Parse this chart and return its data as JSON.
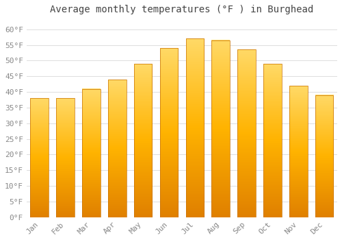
{
  "title": "Average monthly temperatures (°F ) in Burghead",
  "months": [
    "Jan",
    "Feb",
    "Mar",
    "Apr",
    "May",
    "Jun",
    "Jul",
    "Aug",
    "Sep",
    "Oct",
    "Nov",
    "Dec"
  ],
  "values": [
    38,
    38,
    41,
    44,
    49,
    54,
    57,
    56.5,
    53.5,
    49,
    42,
    39
  ],
  "bar_color": "#FFA500",
  "background_color": "#FFFFFF",
  "grid_color": "#DDDDDD",
  "text_color": "#888888",
  "title_color": "#444444",
  "ylim": [
    0,
    63
  ],
  "yticks": [
    0,
    5,
    10,
    15,
    20,
    25,
    30,
    35,
    40,
    45,
    50,
    55,
    60
  ],
  "ytick_labels": [
    "0°F",
    "5°F",
    "10°F",
    "15°F",
    "20°F",
    "25°F",
    "30°F",
    "35°F",
    "40°F",
    "45°F",
    "50°F",
    "55°F",
    "60°F"
  ],
  "title_fontsize": 10,
  "tick_fontsize": 8,
  "bar_width": 0.7,
  "bar_color_light": "#FFD966",
  "bar_color_dark": "#E08000",
  "bar_edge_color": "#C87000"
}
